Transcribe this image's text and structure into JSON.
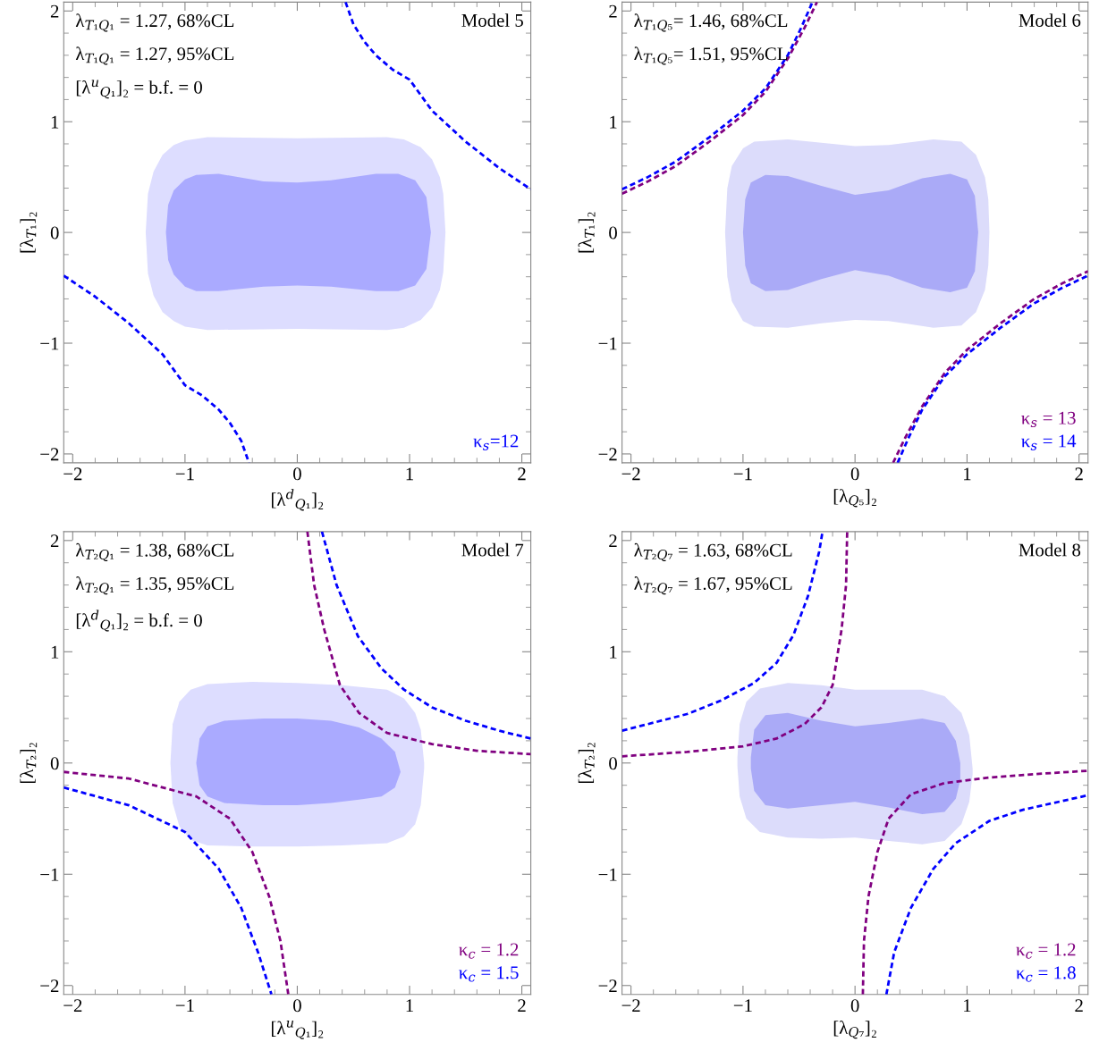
{
  "chart_data": [
    {
      "type": "line",
      "title": "Model 5",
      "xlabel": "[λ$^{d}$$_{Q₁}$]₂",
      "ylabel": "[λ$_{T₁}$]₂",
      "xlim": [
        -2.08,
        2.08
      ],
      "ylim": [
        -2.08,
        2.08
      ],
      "xticks": [
        -2,
        -1,
        0,
        1,
        2
      ],
      "yticks": [
        -2,
        -1,
        0,
        1,
        2
      ],
      "grid": false,
      "legend": false,
      "annotations": [
        "λ$_{T₁Q₁}$ = 1.27, 68%CL",
        "λ$_{T₁Q₁}$ = 1.27, 95%CL",
        "[λ$^{u}$$_{Q₁}$]₂ = b.f. = 0"
      ],
      "series": [
        {
          "type": "area",
          "color": "#ddddff",
          "x": [
            -1.35,
            -1.33,
            -1.28,
            -1.2,
            -1.1,
            -1.0,
            -0.8,
            0,
            0.8,
            0.95,
            1.1,
            1.2,
            1.27,
            1.3,
            1.32,
            1.3,
            1.27,
            1.2,
            1.1,
            0.95,
            0.8,
            0,
            -0.8,
            -1.0,
            -1.1,
            -1.2,
            -1.28,
            -1.33
          ],
          "values": [
            0,
            0.35,
            0.55,
            0.7,
            0.79,
            0.83,
            0.86,
            0.85,
            0.86,
            0.84,
            0.77,
            0.66,
            0.5,
            0.35,
            0,
            -0.36,
            -0.52,
            -0.68,
            -0.79,
            -0.86,
            -0.88,
            -0.87,
            -0.88,
            -0.85,
            -0.8,
            -0.72,
            -0.57,
            -0.37
          ]
        },
        {
          "type": "area",
          "color": "#aaaaff",
          "x": [
            -1.17,
            -1.15,
            -1.1,
            -1.0,
            -0.9,
            -0.7,
            -0.3,
            0,
            0.3,
            0.7,
            0.9,
            1.05,
            1.15,
            1.19,
            1.15,
            1.05,
            0.9,
            0.7,
            0.3,
            0,
            -0.3,
            -0.7,
            -0.9,
            -1.0,
            -1.1,
            -1.15
          ],
          "values": [
            0,
            0.25,
            0.38,
            0.48,
            0.52,
            0.53,
            0.46,
            0.45,
            0.47,
            0.53,
            0.53,
            0.47,
            0.32,
            0,
            -0.33,
            -0.48,
            -0.53,
            -0.53,
            -0.49,
            -0.48,
            -0.49,
            -0.53,
            -0.53,
            -0.49,
            -0.38,
            -0.25
          ]
        },
        {
          "name": "κ$_{s}$=12",
          "color": "#0000ff",
          "line_style": "dashed",
          "x": [
            0.43,
            0.5,
            0.6,
            0.7,
            0.85,
            1.0,
            1.2,
            1.5,
            1.8,
            2.08,
            0,
            -2.08,
            -1.8,
            -1.5,
            -1.2,
            -1.0,
            -0.85,
            -0.7,
            -0.6,
            -0.5,
            -0.43
          ],
          "values": [
            2.08,
            1.88,
            1.72,
            1.6,
            1.47,
            1.38,
            1.1,
            0.82,
            0.58,
            0.39,
            null,
            -0.39,
            -0.58,
            -0.82,
            -1.1,
            -1.38,
            -1.47,
            -1.6,
            -1.72,
            -1.88,
            -2.08
          ]
        }
      ]
    },
    {
      "type": "line",
      "title": "Model 6",
      "xlabel": "[λ$_{Q₅}$]₂",
      "ylabel": "[λ$_{T₁}$]₂",
      "xlim": [
        -2.08,
        2.08
      ],
      "ylim": [
        -2.08,
        2.08
      ],
      "xticks": [
        -2,
        -1,
        0,
        1,
        2
      ],
      "yticks": [
        -2,
        -1,
        0,
        1,
        2
      ],
      "grid": false,
      "legend": false,
      "annotations": [
        "λ$_{T₁Q₅}$= 1.46, 68%CL",
        "λ$_{T₁Q₅}$= 1.51, 95%CL"
      ],
      "series": [
        {
          "type": "area",
          "color": "#dcdcfb",
          "x": [
            -1.16,
            -1.14,
            -1.1,
            -1.0,
            -0.9,
            -0.6,
            -0.3,
            0,
            0.3,
            0.7,
            0.95,
            1.08,
            1.16,
            1.19,
            1.2,
            1.19,
            1.16,
            1.08,
            0.95,
            0.7,
            0.3,
            0,
            -0.3,
            -0.6,
            -0.9,
            -1.0,
            -1.1,
            -1.14
          ],
          "values": [
            0,
            0.4,
            0.6,
            0.76,
            0.82,
            0.84,
            0.81,
            0.78,
            0.79,
            0.84,
            0.82,
            0.7,
            0.5,
            0.3,
            0,
            -0.3,
            -0.52,
            -0.72,
            -0.84,
            -0.86,
            -0.8,
            -0.79,
            -0.82,
            -0.86,
            -0.85,
            -0.8,
            -0.62,
            -0.4
          ]
        },
        {
          "type": "area",
          "color": "#aaaaf7",
          "x": [
            -1.0,
            -0.98,
            -0.93,
            -0.8,
            -0.6,
            -0.3,
            0,
            0.3,
            0.6,
            0.85,
            1.0,
            1.07,
            1.1,
            1.07,
            1.0,
            0.85,
            0.6,
            0.3,
            0,
            -0.3,
            -0.6,
            -0.8,
            -0.93,
            -0.98
          ],
          "values": [
            0,
            0.3,
            0.45,
            0.52,
            0.51,
            0.42,
            0.34,
            0.38,
            0.49,
            0.53,
            0.48,
            0.33,
            0,
            -0.35,
            -0.5,
            -0.54,
            -0.5,
            -0.39,
            -0.34,
            -0.42,
            -0.52,
            -0.53,
            -0.46,
            -0.3
          ]
        },
        {
          "name": "κ$_{s}$ = 13",
          "color": "#800080",
          "line_style": "dashed",
          "x": [
            -2.08,
            -1.85,
            -1.6,
            -1.3,
            -1.0,
            -0.8,
            -0.6,
            -0.45,
            -0.34,
            0,
            0.34,
            0.45,
            0.6,
            0.8,
            1.0,
            1.3,
            1.6,
            1.85,
            2.08
          ],
          "values": [
            0.35,
            0.46,
            0.6,
            0.82,
            1.06,
            1.27,
            1.57,
            1.85,
            2.08,
            null,
            -2.08,
            -1.85,
            -1.57,
            -1.27,
            -1.06,
            -0.82,
            -0.6,
            -0.46,
            -0.35
          ]
        },
        {
          "name": "κ$_{s}$ = 14",
          "color": "#0000ff",
          "line_style": "dashed",
          "x": [
            -2.08,
            -1.85,
            -1.6,
            -1.3,
            -1.0,
            -0.8,
            -0.6,
            -0.48,
            -0.38,
            0,
            0.38,
            0.48,
            0.6,
            0.8,
            1.0,
            1.3,
            1.6,
            1.85,
            2.08
          ],
          "values": [
            0.39,
            0.5,
            0.64,
            0.86,
            1.1,
            1.3,
            1.6,
            1.85,
            2.08,
            null,
            -2.08,
            -1.85,
            -1.6,
            -1.3,
            -1.1,
            -0.86,
            -0.64,
            -0.5,
            -0.39
          ]
        }
      ]
    },
    {
      "type": "line",
      "title": "Model 7",
      "xlabel": "[λ$^{u}$$_{Q₁}$]₂",
      "ylabel": "[λ$_{T₂}$]₂",
      "xlim": [
        -2.08,
        2.08
      ],
      "ylim": [
        -2.08,
        2.08
      ],
      "xticks": [
        -2,
        -1,
        0,
        1,
        2
      ],
      "yticks": [
        -2,
        -1,
        0,
        1,
        2
      ],
      "grid": false,
      "legend": false,
      "annotations": [
        "λ$_{T₂Q₁}$ = 1.38, 68%CL",
        "λ$_{T₂Q₁}$ = 1.35, 95%CL",
        "[λ$^{d}$$_{Q₁}$]₂ = b.f. = 0"
      ],
      "series": [
        {
          "type": "area",
          "color": "#ddddff",
          "x": [
            -1.13,
            -1.11,
            -1.05,
            -0.95,
            -0.8,
            -0.4,
            0,
            0.4,
            0.8,
            0.95,
            1.05,
            1.1,
            1.13,
            1.13,
            1.1,
            1.05,
            0.95,
            0.8,
            0.4,
            0,
            -0.4,
            -0.8,
            -0.95,
            -1.05,
            -1.11
          ],
          "values": [
            0,
            0.35,
            0.55,
            0.66,
            0.71,
            0.73,
            0.72,
            0.7,
            0.66,
            0.58,
            0.45,
            0.3,
            0,
            -0.05,
            -0.38,
            -0.55,
            -0.66,
            -0.72,
            -0.74,
            -0.75,
            -0.75,
            -0.74,
            -0.69,
            -0.57,
            -0.36
          ]
        },
        {
          "type": "area",
          "color": "#aaaaff",
          "x": [
            -0.9,
            -0.87,
            -0.8,
            -0.65,
            -0.3,
            0,
            0.3,
            0.55,
            0.75,
            0.87,
            0.92,
            0.87,
            0.75,
            0.55,
            0.3,
            0,
            -0.3,
            -0.65,
            -0.8,
            -0.87
          ],
          "values": [
            0,
            0.22,
            0.33,
            0.38,
            0.4,
            0.4,
            0.38,
            0.32,
            0.22,
            0.1,
            -0.08,
            -0.22,
            -0.3,
            -0.33,
            -0.36,
            -0.38,
            -0.38,
            -0.36,
            -0.3,
            -0.2
          ]
        },
        {
          "name": "κ$_{c}$ = 1.2",
          "color": "#800080",
          "line_style": "dashed",
          "x": [
            0.09,
            0.15,
            0.24,
            0.38,
            0.55,
            0.8,
            1.2,
            1.6,
            2.08,
            0,
            -2.08,
            -1.5,
            -0.9,
            -0.6,
            -0.4,
            -0.25,
            -0.15,
            -0.08
          ],
          "values": [
            2.08,
            1.6,
            1.2,
            0.7,
            0.45,
            0.27,
            0.17,
            0.11,
            0.08,
            null,
            -0.08,
            -0.14,
            -0.3,
            -0.5,
            -0.8,
            -1.2,
            -1.6,
            -2.08
          ]
        },
        {
          "name": "κ$_{c}$ = 1.5",
          "color": "#0000ff",
          "line_style": "dashed",
          "x": [
            0.22,
            0.35,
            0.54,
            0.75,
            0.95,
            1.2,
            1.5,
            1.8,
            2.08,
            0,
            -2.08,
            -1.5,
            -1.0,
            -0.7,
            -0.5,
            -0.35,
            -0.23
          ],
          "values": [
            2.08,
            1.6,
            1.14,
            0.85,
            0.66,
            0.5,
            0.38,
            0.29,
            0.22,
            null,
            -0.22,
            -0.38,
            -0.62,
            -0.95,
            -1.3,
            -1.7,
            -2.08
          ]
        }
      ]
    },
    {
      "type": "line",
      "title": "Model 8",
      "xlabel": "[λ$_{Q₇}$]₂",
      "ylabel": "[λ$_{T₂}$]₂",
      "xlim": [
        -2.08,
        2.08
      ],
      "ylim": [
        -2.08,
        2.08
      ],
      "xticks": [
        -2,
        -1,
        0,
        1,
        2
      ],
      "yticks": [
        -2,
        -1,
        0,
        1,
        2
      ],
      "grid": false,
      "legend": false,
      "annotations": [
        "λ$_{T₂Q₇}$ = 1.63, 68%CL",
        "λ$_{T₂Q₇}$ = 1.67, 95%CL"
      ],
      "series": [
        {
          "type": "area",
          "color": "#dcdcfb",
          "x": [
            -1.05,
            -1.03,
            -0.97,
            -0.85,
            -0.6,
            -0.3,
            0,
            0.3,
            0.6,
            0.8,
            0.95,
            1.02,
            1.05,
            1.05,
            1.02,
            0.95,
            0.8,
            0.6,
            0.3,
            0,
            -0.3,
            -0.6,
            -0.85,
            -0.97,
            -1.03,
            -1.05
          ],
          "values": [
            0.05,
            0.35,
            0.55,
            0.67,
            0.72,
            0.7,
            0.66,
            0.66,
            0.66,
            0.6,
            0.45,
            0.25,
            -0.05,
            -0.1,
            -0.35,
            -0.55,
            -0.7,
            -0.73,
            -0.7,
            -0.67,
            -0.68,
            -0.67,
            -0.62,
            -0.5,
            -0.3,
            -0.03
          ]
        },
        {
          "type": "area",
          "color": "#aaaaf7",
          "x": [
            -0.93,
            -0.9,
            -0.8,
            -0.6,
            -0.3,
            0,
            0.3,
            0.6,
            0.8,
            0.9,
            0.94,
            0.94,
            0.9,
            0.8,
            0.6,
            0.3,
            0,
            -0.3,
            -0.6,
            -0.8,
            -0.9,
            -0.93
          ],
          "values": [
            0.05,
            0.3,
            0.43,
            0.45,
            0.38,
            0.33,
            0.36,
            0.4,
            0.36,
            0.2,
            0,
            -0.15,
            -0.32,
            -0.44,
            -0.46,
            -0.4,
            -0.35,
            -0.38,
            -0.41,
            -0.38,
            -0.25,
            -0.05
          ]
        },
        {
          "name": "κ$_{c}$ = 1.2",
          "color": "#800080",
          "line_style": "dashed",
          "x": [
            -2.08,
            -1.5,
            -1.0,
            -0.7,
            -0.45,
            -0.3,
            -0.2,
            -0.12,
            -0.08,
            -0.07,
            0,
            0.07,
            0.08,
            0.12,
            0.2,
            0.3,
            0.5,
            0.8,
            1.2,
            1.6,
            2.08
          ],
          "values": [
            0.06,
            0.1,
            0.15,
            0.22,
            0.35,
            0.5,
            0.7,
            1.2,
            1.6,
            2.08,
            null,
            -2.08,
            -1.6,
            -1.2,
            -0.8,
            -0.5,
            -0.28,
            -0.18,
            -0.13,
            -0.1,
            -0.07
          ]
        },
        {
          "name": "κ$_{c}$ = 1.8",
          "color": "#0000ff",
          "line_style": "dashed",
          "x": [
            -2.08,
            -1.5,
            -1.2,
            -0.9,
            -0.7,
            -0.55,
            -0.42,
            -0.32,
            -0.29,
            0,
            0.28,
            0.35,
            0.5,
            0.7,
            0.9,
            1.2,
            1.5,
            2.08
          ],
          "values": [
            0.29,
            0.44,
            0.56,
            0.72,
            0.9,
            1.15,
            1.5,
            1.9,
            2.08,
            null,
            -2.08,
            -1.7,
            -1.3,
            -0.95,
            -0.72,
            -0.52,
            -0.42,
            -0.29
          ]
        }
      ]
    }
  ]
}
